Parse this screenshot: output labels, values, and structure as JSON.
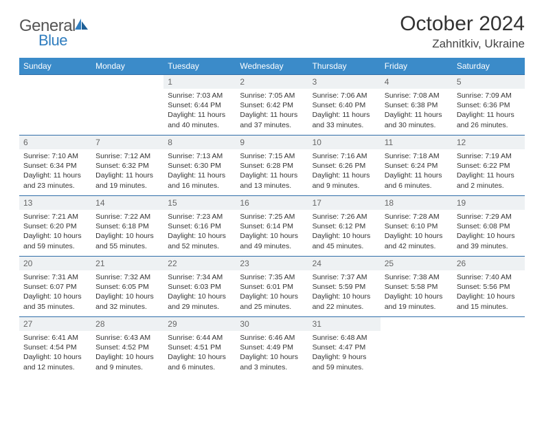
{
  "logo": {
    "word1": "General",
    "word2": "Blue"
  },
  "title": "October 2024",
  "location": "Zahnitkiv, Ukraine",
  "colors": {
    "header_bg": "#3b8bc9",
    "header_text": "#ffffff",
    "daynum_bg": "#eef1f3",
    "daynum_text": "#666666",
    "row_border": "#2f6da8",
    "body_text": "#333333",
    "logo_gray": "#555555",
    "logo_blue": "#2f7dbf"
  },
  "day_headers": [
    "Sunday",
    "Monday",
    "Tuesday",
    "Wednesday",
    "Thursday",
    "Friday",
    "Saturday"
  ],
  "leading_blanks": 2,
  "days": [
    {
      "n": 1,
      "sunrise": "7:03 AM",
      "sunset": "6:44 PM",
      "daylight": "11 hours and 40 minutes."
    },
    {
      "n": 2,
      "sunrise": "7:05 AM",
      "sunset": "6:42 PM",
      "daylight": "11 hours and 37 minutes."
    },
    {
      "n": 3,
      "sunrise": "7:06 AM",
      "sunset": "6:40 PM",
      "daylight": "11 hours and 33 minutes."
    },
    {
      "n": 4,
      "sunrise": "7:08 AM",
      "sunset": "6:38 PM",
      "daylight": "11 hours and 30 minutes."
    },
    {
      "n": 5,
      "sunrise": "7:09 AM",
      "sunset": "6:36 PM",
      "daylight": "11 hours and 26 minutes."
    },
    {
      "n": 6,
      "sunrise": "7:10 AM",
      "sunset": "6:34 PM",
      "daylight": "11 hours and 23 minutes."
    },
    {
      "n": 7,
      "sunrise": "7:12 AM",
      "sunset": "6:32 PM",
      "daylight": "11 hours and 19 minutes."
    },
    {
      "n": 8,
      "sunrise": "7:13 AM",
      "sunset": "6:30 PM",
      "daylight": "11 hours and 16 minutes."
    },
    {
      "n": 9,
      "sunrise": "7:15 AM",
      "sunset": "6:28 PM",
      "daylight": "11 hours and 13 minutes."
    },
    {
      "n": 10,
      "sunrise": "7:16 AM",
      "sunset": "6:26 PM",
      "daylight": "11 hours and 9 minutes."
    },
    {
      "n": 11,
      "sunrise": "7:18 AM",
      "sunset": "6:24 PM",
      "daylight": "11 hours and 6 minutes."
    },
    {
      "n": 12,
      "sunrise": "7:19 AM",
      "sunset": "6:22 PM",
      "daylight": "11 hours and 2 minutes."
    },
    {
      "n": 13,
      "sunrise": "7:21 AM",
      "sunset": "6:20 PM",
      "daylight": "10 hours and 59 minutes."
    },
    {
      "n": 14,
      "sunrise": "7:22 AM",
      "sunset": "6:18 PM",
      "daylight": "10 hours and 55 minutes."
    },
    {
      "n": 15,
      "sunrise": "7:23 AM",
      "sunset": "6:16 PM",
      "daylight": "10 hours and 52 minutes."
    },
    {
      "n": 16,
      "sunrise": "7:25 AM",
      "sunset": "6:14 PM",
      "daylight": "10 hours and 49 minutes."
    },
    {
      "n": 17,
      "sunrise": "7:26 AM",
      "sunset": "6:12 PM",
      "daylight": "10 hours and 45 minutes."
    },
    {
      "n": 18,
      "sunrise": "7:28 AM",
      "sunset": "6:10 PM",
      "daylight": "10 hours and 42 minutes."
    },
    {
      "n": 19,
      "sunrise": "7:29 AM",
      "sunset": "6:08 PM",
      "daylight": "10 hours and 39 minutes."
    },
    {
      "n": 20,
      "sunrise": "7:31 AM",
      "sunset": "6:07 PM",
      "daylight": "10 hours and 35 minutes."
    },
    {
      "n": 21,
      "sunrise": "7:32 AM",
      "sunset": "6:05 PM",
      "daylight": "10 hours and 32 minutes."
    },
    {
      "n": 22,
      "sunrise": "7:34 AM",
      "sunset": "6:03 PM",
      "daylight": "10 hours and 29 minutes."
    },
    {
      "n": 23,
      "sunrise": "7:35 AM",
      "sunset": "6:01 PM",
      "daylight": "10 hours and 25 minutes."
    },
    {
      "n": 24,
      "sunrise": "7:37 AM",
      "sunset": "5:59 PM",
      "daylight": "10 hours and 22 minutes."
    },
    {
      "n": 25,
      "sunrise": "7:38 AM",
      "sunset": "5:58 PM",
      "daylight": "10 hours and 19 minutes."
    },
    {
      "n": 26,
      "sunrise": "7:40 AM",
      "sunset": "5:56 PM",
      "daylight": "10 hours and 15 minutes."
    },
    {
      "n": 27,
      "sunrise": "6:41 AM",
      "sunset": "4:54 PM",
      "daylight": "10 hours and 12 minutes."
    },
    {
      "n": 28,
      "sunrise": "6:43 AM",
      "sunset": "4:52 PM",
      "daylight": "10 hours and 9 minutes."
    },
    {
      "n": 29,
      "sunrise": "6:44 AM",
      "sunset": "4:51 PM",
      "daylight": "10 hours and 6 minutes."
    },
    {
      "n": 30,
      "sunrise": "6:46 AM",
      "sunset": "4:49 PM",
      "daylight": "10 hours and 3 minutes."
    },
    {
      "n": 31,
      "sunrise": "6:48 AM",
      "sunset": "4:47 PM",
      "daylight": "9 hours and 59 minutes."
    }
  ],
  "labels": {
    "sunrise": "Sunrise:",
    "sunset": "Sunset:",
    "daylight": "Daylight:"
  }
}
